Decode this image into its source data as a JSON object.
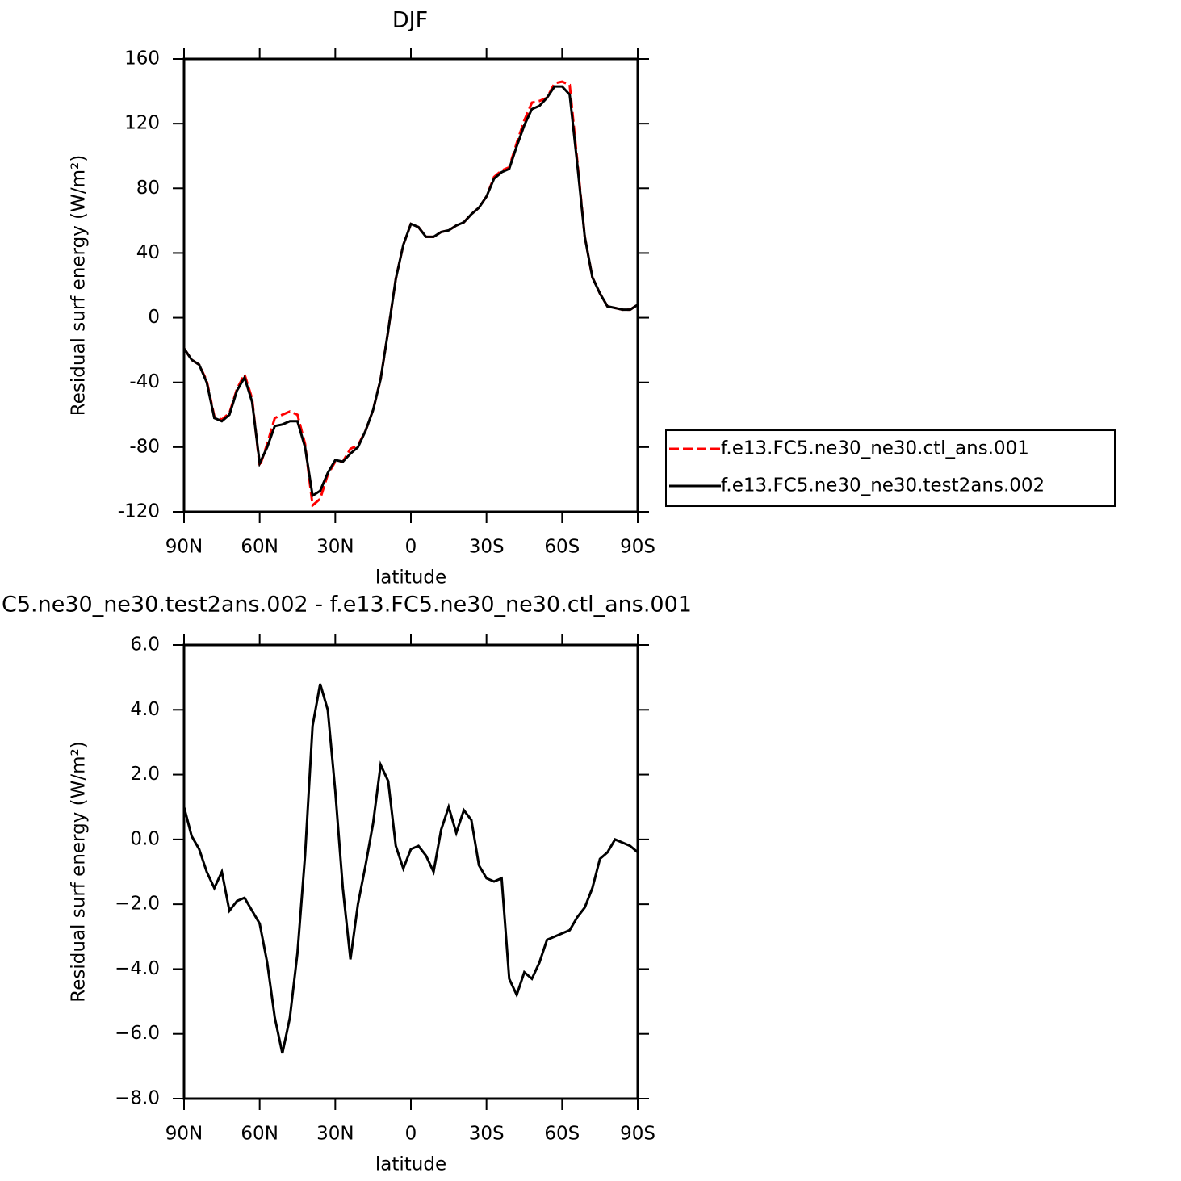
{
  "chart_data": [
    {
      "type": "line",
      "title": "DJF",
      "x_label": "latitude",
      "y_label": "Residual surf energy (W/m²)",
      "x": [
        90,
        87,
        84,
        81,
        78,
        75,
        72,
        69,
        66,
        63,
        60,
        57,
        54,
        51,
        48,
        45,
        42,
        39,
        36,
        33,
        30,
        27,
        24,
        21,
        18,
        15,
        12,
        9,
        6,
        3,
        0,
        -3,
        -6,
        -9,
        -12,
        -15,
        -18,
        -21,
        -24,
        -27,
        -30,
        -33,
        -36,
        -39,
        -42,
        -45,
        -48,
        -51,
        -54,
        -57,
        -60,
        -63,
        -66,
        -69,
        -72,
        -75,
        -78,
        -81,
        -84,
        -87,
        -90
      ],
      "series": [
        {
          "name": "f.e13.FC5.ne30_ne30.ctl_ans.001",
          "color": "#ff0000",
          "line_style": "dashed",
          "values": [
            -19,
            -26,
            -29,
            -39,
            -61,
            -63,
            -59,
            -44,
            -35,
            -50,
            -92,
            -78,
            -62,
            -60,
            -58,
            -60,
            -78,
            -116,
            -112,
            -97,
            -89,
            -89,
            -81,
            -79,
            -70,
            -57,
            -38,
            -8,
            24,
            45,
            58,
            56,
            50,
            50,
            53,
            54,
            57,
            59,
            64,
            68,
            75,
            87,
            91,
            93,
            108,
            122,
            133,
            134,
            136,
            145,
            146,
            144,
            97,
            50,
            25,
            15,
            7,
            6,
            5,
            5,
            8
          ]
        },
        {
          "name": "f.e13.FC5.ne30_ne30.test2ans.002",
          "color": "#000000",
          "line_style": "solid",
          "values": [
            -19,
            -26,
            -29,
            -40,
            -62,
            -64,
            -60,
            -45,
            -37,
            -52,
            -90,
            -80,
            -67,
            -66,
            -64,
            -64,
            -80,
            -110,
            -107,
            -96,
            -88,
            -89,
            -84,
            -80,
            -70,
            -57,
            -38,
            -8,
            24,
            45,
            58,
            56,
            50,
            50,
            53,
            54,
            57,
            59,
            64,
            68,
            75,
            86,
            90,
            92,
            106,
            119,
            129,
            131,
            136,
            143,
            143,
            138,
            95,
            50,
            25,
            15,
            7,
            6,
            5,
            5,
            8
          ]
        }
      ],
      "xlim": [
        90,
        -90
      ],
      "xticks": [
        {
          "value": 90,
          "label": "90N"
        },
        {
          "value": 60,
          "label": "60N"
        },
        {
          "value": 30,
          "label": "30N"
        },
        0,
        {
          "value": -30,
          "label": "30S"
        },
        {
          "value": -60,
          "label": "60S"
        },
        {
          "value": -90,
          "label": "90S"
        }
      ],
      "ylim": [
        -120,
        160
      ],
      "yticks": [
        -120,
        -80,
        -40,
        0,
        40,
        80,
        120,
        160
      ],
      "legend": "right"
    },
    {
      "type": "line",
      "title": "C5.ne30_ne30.test2ans.002 - f.e13.FC5.ne30_ne30.ctl_ans.001",
      "x_label": "latitude",
      "y_label": "Residual surf energy (W/m²)",
      "x": [
        90,
        87,
        84,
        81,
        78,
        75,
        72,
        69,
        66,
        63,
        60,
        57,
        54,
        51,
        48,
        45,
        42,
        39,
        36,
        33,
        30,
        27,
        24,
        21,
        18,
        15,
        12,
        9,
        6,
        3,
        0,
        -3,
        -6,
        -9,
        -12,
        -15,
        -18,
        -21,
        -24,
        -27,
        -30,
        -33,
        -36,
        -39,
        -42,
        -45,
        -48,
        -51,
        -54,
        -57,
        -60,
        -63,
        -66,
        -69,
        -72,
        -75,
        -78,
        -81,
        -84,
        -87,
        -90
      ],
      "series": [
        {
          "color": "#000000",
          "line_style": "solid",
          "values": [
            1.0,
            0.1,
            -0.3,
            -1.0,
            -1.5,
            -1.0,
            -2.2,
            -1.9,
            -1.8,
            -2.2,
            -2.6,
            -3.8,
            -5.5,
            -6.6,
            -5.5,
            -3.5,
            -0.5,
            3.5,
            4.8,
            4.0,
            1.5,
            -1.5,
            -3.7,
            -2.0,
            -0.8,
            0.5,
            2.3,
            1.8,
            -0.2,
            -0.9,
            -0.3,
            -0.2,
            -0.5,
            -1.0,
            0.3,
            1.0,
            0.2,
            0.9,
            0.6,
            -0.8,
            -1.2,
            -1.3,
            -1.2,
            -4.3,
            -4.8,
            -4.1,
            -4.3,
            -3.8,
            -3.1,
            -3.0,
            -2.9,
            -2.8,
            -2.4,
            -2.1,
            -1.5,
            -0.6,
            -0.4,
            0.0,
            -0.1,
            -0.2,
            -0.4
          ]
        }
      ],
      "xlim": [
        90,
        -90
      ],
      "xticks": [
        {
          "value": 90,
          "label": "90N"
        },
        {
          "value": 60,
          "label": "60N"
        },
        {
          "value": 30,
          "label": "30N"
        },
        0,
        {
          "value": -30,
          "label": "30S"
        },
        {
          "value": -60,
          "label": "60S"
        },
        {
          "value": -90,
          "label": "90S"
        }
      ],
      "ylim": [
        -8,
        6
      ],
      "yticks": [
        {
          "value": -8,
          "label": "−8.0"
        },
        {
          "value": -6,
          "label": "−6.0"
        },
        {
          "value": -4,
          "label": "−4.0"
        },
        {
          "value": -2,
          "label": "−2.0"
        },
        {
          "value": 0,
          "label": "0.0"
        },
        {
          "value": 2,
          "label": "2.0"
        },
        {
          "value": 4,
          "label": "4.0"
        },
        {
          "value": 6,
          "label": "6.0"
        }
      ]
    }
  ]
}
